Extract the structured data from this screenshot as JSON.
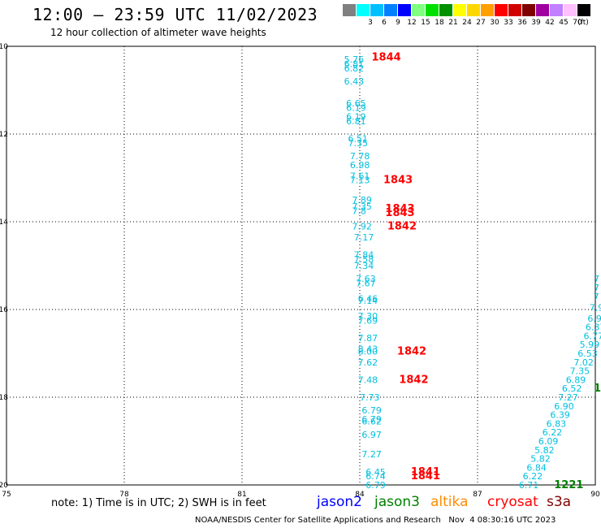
{
  "header": {
    "title": "12:00 — 23:59 UTC 11/02/2023",
    "subtitle": "12 hour collection of altimeter wave heights"
  },
  "legend": {
    "unit": "(ft)",
    "bins": [
      {
        "label": "",
        "color": "#808080"
      },
      {
        "label": "3",
        "color": "#00ffff"
      },
      {
        "label": "6",
        "color": "#00c0ff"
      },
      {
        "label": "9",
        "color": "#0080ff"
      },
      {
        "label": "12",
        "color": "#0000ff"
      },
      {
        "label": "15",
        "color": "#80ff80"
      },
      {
        "label": "18",
        "color": "#00e000"
      },
      {
        "label": "21",
        "color": "#009000"
      },
      {
        "label": "24",
        "color": "#ffff00"
      },
      {
        "label": "27",
        "color": "#ffd700"
      },
      {
        "label": "30",
        "color": "#ffa000"
      },
      {
        "label": "33",
        "color": "#ff0000"
      },
      {
        "label": "36",
        "color": "#d00000"
      },
      {
        "label": "39",
        "color": "#800000"
      },
      {
        "label": "42",
        "color": "#a000a0"
      },
      {
        "label": "45",
        "color": "#c080ff"
      },
      {
        "label": "70",
        "color": "#ffc0ff"
      },
      {
        "label": "",
        "color": "#000000"
      }
    ]
  },
  "map": {
    "lon_ticks": [
      "75",
      "78",
      "81",
      "84",
      "87",
      "90"
    ],
    "lat_ticks": [
      "-10",
      "-12",
      "-14",
      "-16",
      "-18",
      "-20"
    ],
    "lon_range": [
      75,
      90
    ],
    "lat_range": [
      -10,
      -20
    ]
  },
  "chart_data": {
    "type": "scatter",
    "x_axis": "longitude",
    "y_axis": "latitude",
    "series": [
      {
        "color": "#00c0e0",
        "points": [
          {
            "lon": 83.6,
            "lat": -10.3,
            "label": "5.76"
          },
          {
            "lon": 83.6,
            "lat": -10.4,
            "label": "6.81"
          },
          {
            "lon": 83.6,
            "lat": -10.5,
            "label": "6.82"
          },
          {
            "lon": 83.6,
            "lat": -10.8,
            "label": "6.43"
          },
          {
            "lon": 83.65,
            "lat": -11.3,
            "label": "6.65"
          },
          {
            "lon": 83.65,
            "lat": -11.4,
            "label": "6.19"
          },
          {
            "lon": 83.65,
            "lat": -11.6,
            "label": "6.19"
          },
          {
            "lon": 83.65,
            "lat": -11.7,
            "label": "6.81"
          },
          {
            "lon": 83.7,
            "lat": -12.1,
            "label": "6.51"
          },
          {
            "lon": 83.7,
            "lat": -12.2,
            "label": "7.35"
          },
          {
            "lon": 83.75,
            "lat": -12.5,
            "label": "7.78"
          },
          {
            "lon": 83.75,
            "lat": -12.7,
            "label": "6.98"
          },
          {
            "lon": 83.75,
            "lat": -12.95,
            "label": "7.61"
          },
          {
            "lon": 83.75,
            "lat": -13.05,
            "label": "7.13"
          },
          {
            "lon": 83.8,
            "lat": -13.5,
            "label": "7.89"
          },
          {
            "lon": 83.8,
            "lat": -13.65,
            "label": "7.35"
          },
          {
            "lon": 83.8,
            "lat": -13.75,
            "label": "7.8"
          },
          {
            "lon": 83.8,
            "lat": -14.1,
            "label": "7.92"
          },
          {
            "lon": 83.85,
            "lat": -14.35,
            "label": "7.17"
          },
          {
            "lon": 83.85,
            "lat": -14.75,
            "label": "7.84"
          },
          {
            "lon": 83.85,
            "lat": -14.85,
            "label": "7.58"
          },
          {
            "lon": 83.85,
            "lat": -15.0,
            "label": "7.34"
          },
          {
            "lon": 83.9,
            "lat": -15.3,
            "label": "7.63"
          },
          {
            "lon": 83.9,
            "lat": -15.4,
            "label": "7.67"
          },
          {
            "lon": 83.95,
            "lat": -15.75,
            "label": "6.46"
          },
          {
            "lon": 83.95,
            "lat": -15.8,
            "label": "7.14"
          },
          {
            "lon": 83.95,
            "lat": -16.15,
            "label": "7.30"
          },
          {
            "lon": 83.95,
            "lat": -16.25,
            "label": "7.69"
          },
          {
            "lon": 83.95,
            "lat": -16.65,
            "label": "7.87"
          },
          {
            "lon": 83.95,
            "lat": -16.9,
            "label": "8.43"
          },
          {
            "lon": 83.95,
            "lat": -16.95,
            "label": "8.00"
          },
          {
            "lon": 83.95,
            "lat": -17.2,
            "label": "7.62"
          },
          {
            "lon": 83.95,
            "lat": -17.6,
            "label": "7.48"
          },
          {
            "lon": 84.0,
            "lat": -18.0,
            "label": "7.73"
          },
          {
            "lon": 84.05,
            "lat": -18.3,
            "label": "6.79"
          },
          {
            "lon": 84.05,
            "lat": -18.5,
            "label": "6.79"
          },
          {
            "lon": 84.05,
            "lat": -18.55,
            "label": "6.62"
          },
          {
            "lon": 84.05,
            "lat": -18.85,
            "label": "6.97"
          },
          {
            "lon": 84.05,
            "lat": -19.3,
            "label": "7.27"
          },
          {
            "lon": 84.15,
            "lat": -19.7,
            "label": "6.45"
          },
          {
            "lon": 84.15,
            "lat": -19.8,
            "label": "6.74"
          },
          {
            "lon": 84.15,
            "lat": -20.0,
            "label": "6.79"
          }
        ]
      },
      {
        "color": "#00c0e0",
        "points": [
          {
            "lon": 90.0,
            "lat": -15.3,
            "label": "7"
          },
          {
            "lon": 90.0,
            "lat": -15.5,
            "label": "7"
          },
          {
            "lon": 89.95,
            "lat": -15.7,
            "label": "7"
          },
          {
            "lon": 89.85,
            "lat": -15.95,
            "label": "7.9"
          },
          {
            "lon": 89.8,
            "lat": -16.2,
            "label": "6.9"
          },
          {
            "lon": 89.75,
            "lat": -16.4,
            "label": "6.37"
          },
          {
            "lon": 89.7,
            "lat": -16.6,
            "label": "6.77"
          },
          {
            "lon": 89.6,
            "lat": -16.8,
            "label": "5.99"
          },
          {
            "lon": 89.55,
            "lat": -17.0,
            "label": "6.53"
          },
          {
            "lon": 89.45,
            "lat": -17.2,
            "label": "7.02"
          },
          {
            "lon": 89.35,
            "lat": -17.4,
            "label": "7.35"
          },
          {
            "lon": 89.25,
            "lat": -17.6,
            "label": "6.89"
          },
          {
            "lon": 89.15,
            "lat": -17.8,
            "label": "6.52"
          },
          {
            "lon": 89.05,
            "lat": -18.0,
            "label": "7.27"
          },
          {
            "lon": 88.95,
            "lat": -18.2,
            "label": "6.90"
          },
          {
            "lon": 88.85,
            "lat": -18.4,
            "label": "6.39"
          },
          {
            "lon": 88.75,
            "lat": -18.6,
            "label": "6.83"
          },
          {
            "lon": 88.65,
            "lat": -18.8,
            "label": "6.22"
          },
          {
            "lon": 88.55,
            "lat": -19.0,
            "label": "6.09"
          },
          {
            "lon": 88.45,
            "lat": -19.2,
            "label": "5.82"
          },
          {
            "lon": 88.35,
            "lat": -19.4,
            "label": "5.82"
          },
          {
            "lon": 88.25,
            "lat": -19.6,
            "label": "6.84"
          },
          {
            "lon": 88.15,
            "lat": -19.8,
            "label": "6.22"
          },
          {
            "lon": 88.05,
            "lat": -20.0,
            "label": "6.71"
          }
        ]
      },
      {
        "color": "#ff0000",
        "points": [
          {
            "lon": 84.3,
            "lat": -10.25,
            "label": "1844"
          },
          {
            "lon": 84.6,
            "lat": -13.05,
            "label": "1843"
          },
          {
            "lon": 84.65,
            "lat": -13.7,
            "label": "1843"
          },
          {
            "lon": 84.65,
            "lat": -13.8,
            "label": "1843"
          },
          {
            "lon": 84.7,
            "lat": -14.1,
            "label": "1842"
          },
          {
            "lon": 84.95,
            "lat": -16.95,
            "label": "1842"
          },
          {
            "lon": 85.0,
            "lat": -17.6,
            "label": "1842"
          },
          {
            "lon": 85.3,
            "lat": -19.7,
            "label": "1841"
          },
          {
            "lon": 85.3,
            "lat": -19.8,
            "label": "1841"
          }
        ]
      },
      {
        "color": "#008000",
        "points": [
          {
            "lon": 88.95,
            "lat": -20.0,
            "label": "1221"
          },
          {
            "lon": 90.0,
            "lat": -17.8,
            "label": "1"
          }
        ]
      }
    ]
  },
  "footer": {
    "note": "note:  1) Time is in UTC;  2) SWH is in feet",
    "satellites": [
      {
        "name": "jason2",
        "color": "#0000ff"
      },
      {
        "name": "jason3",
        "color": "#008000"
      },
      {
        "name": "altika",
        "color": "#ff8c00"
      },
      {
        "name": "cryosat",
        "color": "#ff0000"
      },
      {
        "name": "s3a",
        "color": "#800000"
      }
    ],
    "credit": "NOAA/NESDIS Center for Satellite Applications and Research   Nov  4 08:30:16 UTC 2023"
  }
}
